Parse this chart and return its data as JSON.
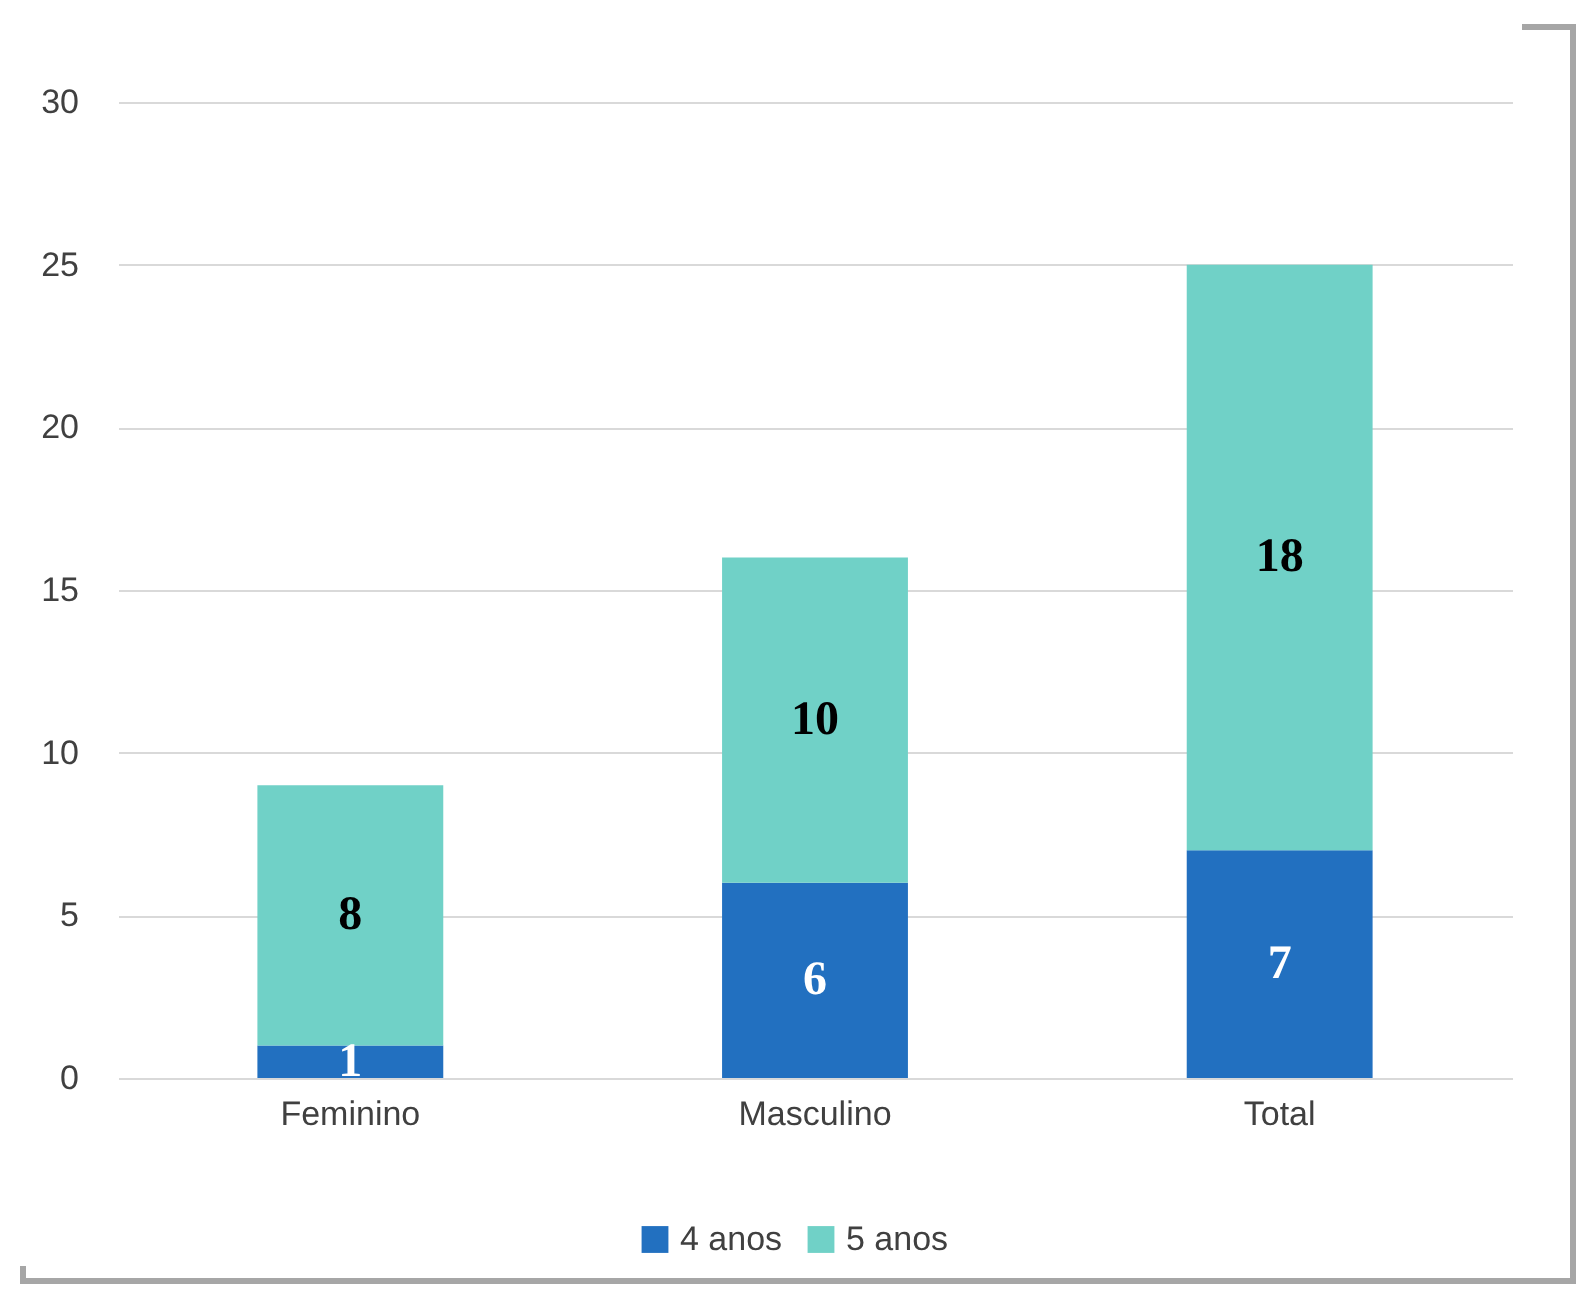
{
  "chart_data": {
    "type": "bar",
    "stacked": true,
    "categories": [
      "Feminino",
      "Masculino",
      "Total"
    ],
    "series": [
      {
        "name": "4 anos",
        "color": "#2270c0",
        "values": [
          1,
          6,
          7
        ]
      },
      {
        "name": "5 anos",
        "color": "#70d1c7",
        "values": [
          8,
          10,
          18
        ]
      }
    ],
    "ylim": [
      0,
      30
    ],
    "yticks": [
      0,
      5,
      10,
      15,
      20,
      25,
      30
    ],
    "grid": "y",
    "legend": "bottom",
    "data_labels": true
  }
}
